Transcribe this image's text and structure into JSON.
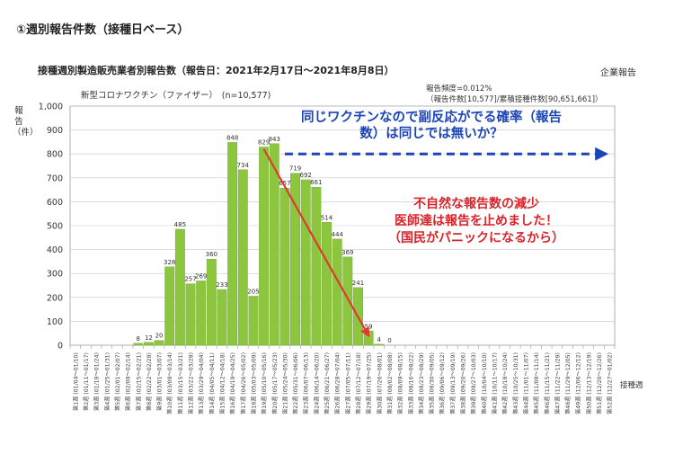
{
  "header": {
    "section_title": "①週別報告件数（接種日ベース）",
    "chart_title": "接種週別製造販売業者別報告数（報告日：2021年2月17日～2021年8月8日）",
    "corner_label": "企業報告",
    "subtitle": "新型コロナワクチン（ファイザー）　(n=10,577)",
    "report_freq_line1": "報告頻度=0.012%",
    "report_freq_line2": "（報告件数[10,577]/累積接種件数[90,651,661]）"
  },
  "annotations": {
    "blue": "同じワクチンなので副反応がでる確率（報告数）は同じでは無いか？",
    "red_line1": "不自然な報告数の減少",
    "red_line2": "医師達は報告を止めました！",
    "red_line3": "（国民がパニックになるから）"
  },
  "colors": {
    "bar": "#8cc63f",
    "bar_edge": "#6fa22e",
    "blue_arrow": "#1a44b8",
    "red_arrow": "#e03a2f"
  },
  "chart_data": {
    "type": "bar",
    "ylabel": "報告（件）",
    "xlabel": "接種週",
    "ylim": [
      0,
      1000
    ],
    "yticks": [
      "0",
      "100",
      "200",
      "300",
      "400",
      "500",
      "600",
      "700",
      "800",
      "900",
      "1,000"
    ],
    "grid": true,
    "categories": [
      "第1週 (01/04～01/10)",
      "第2週 (01/11～01/17)",
      "第3週 (01/18～01/24)",
      "第4週 (01/25～01/31)",
      "第5週 (02/01～02/07)",
      "第6週 (02/08～02/14)",
      "第7週 (02/15～02/21)",
      "第8週 (02/22～02/28)",
      "第9週 (03/01～03/07)",
      "第10週 (03/08～03/14)",
      "第11週 (03/15～03/21)",
      "第12週 (03/22～03/28)",
      "第13週 (03/29～04/04)",
      "第14週 (04/05～04/11)",
      "第15週 (04/12～04/18)",
      "第16週 (04/19～04/25)",
      "第17週 (04/26～05/02)",
      "第18週 (05/03～05/09)",
      "第19週 (05/10～05/16)",
      "第20週 (05/17～05/23)",
      "第21週 (05/24～05/30)",
      "第22週 (05/31～06/06)",
      "第23週 (06/07～06/13)",
      "第24週 (06/14～06/20)",
      "第25週 (06/21～06/27)",
      "第26週 (06/28～07/04)",
      "第27週 (07/05～07/11)",
      "第28週 (07/12～07/18)",
      "第29週 (07/19～07/25)",
      "第30週 (07/26～08/01)",
      "第31週 (08/02～08/08)",
      "第32週 (08/09～08/15)",
      "第33週 (08/16～08/22)",
      "第34週 (08/23～08/29)",
      "第35週 (08/30～09/05)",
      "第36週 (09/06～09/12)",
      "第37週 (09/13～09/19)",
      "第38週 (09/20～09/26)",
      "第39週 (09/27～10/03)",
      "第40週 (10/04～10/10)",
      "第41週 (10/11～10/17)",
      "第42週 (10/18～10/24)",
      "第43週 (10/25～10/31)",
      "第44週 (11/01～11/07)",
      "第45週 (11/08～11/14)",
      "第46週 (11/15～11/21)",
      "第47週 (11/22～11/28)",
      "第48週 (11/29～12/05)",
      "第49週 (12/06～12/12)",
      "第50週 (12/13～12/19)",
      "第51週 (12/20～12/26)",
      "第52週 (12/27～01/02)"
    ],
    "values": [
      null,
      null,
      null,
      null,
      null,
      null,
      8,
      12,
      20,
      328,
      485,
      257,
      269,
      360,
      233,
      848,
      734,
      205,
      829,
      843,
      657,
      719,
      692,
      661,
      514,
      444,
      369,
      241,
      59,
      4,
      0,
      null,
      null,
      null,
      null,
      null,
      null,
      null,
      null,
      null,
      null,
      null,
      null,
      null,
      null,
      null,
      null,
      null,
      null,
      null,
      null,
      null
    ],
    "labels": [
      "",
      "",
      "",
      "",
      "",
      "",
      "8",
      "12",
      "20",
      "328",
      "485",
      "257",
      "269",
      "360",
      "233",
      "848",
      "734",
      "205",
      "829",
      "843",
      "657",
      "719",
      "692",
      "661",
      "514",
      "444",
      "369",
      "241",
      "59",
      "4",
      "0",
      "",
      "",
      "",
      "",
      "",
      "",
      "",
      "",
      "",
      "",
      "",
      "",
      "",
      "",
      "",
      "",
      "",
      "",
      "",
      "",
      ""
    ],
    "arrows": [
      {
        "kind": "dashed-horizontal",
        "from_category": 20,
        "to_category": 51,
        "value": 800
      },
      {
        "kind": "diagonal",
        "from_category": 18,
        "from_value": 820,
        "to_category": 28,
        "to_value": 40
      }
    ]
  }
}
